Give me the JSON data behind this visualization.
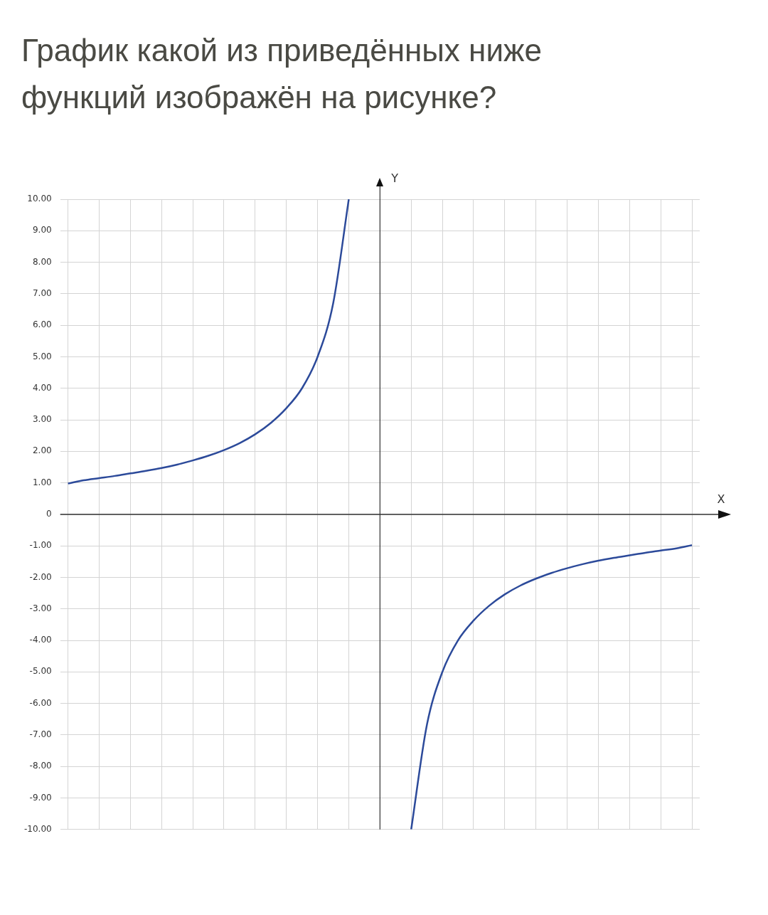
{
  "chart_data": {
    "type": "line",
    "title": "График какой из приведённых ниже функций изображён на рисунке?",
    "xlabel": "X",
    "ylabel": "Y",
    "categories": [
      null,
      null,
      null,
      null,
      null,
      null,
      null,
      null,
      null,
      null,
      null,
      null,
      null,
      null,
      null,
      null,
      null,
      null,
      null,
      null,
      null,
      null,
      null,
      null,
      null,
      null,
      null,
      null,
      null,
      null,
      null,
      null,
      null,
      null,
      null,
      null,
      null,
      null,
      null,
      null,
      null
    ],
    "series": [
      {
        "color": "#2c4a9a",
        "values": [
          0.98,
          1.08,
          1.15,
          1.22,
          1.3,
          1.38,
          1.47,
          1.58,
          1.71,
          1.86,
          2.04,
          2.26,
          2.54,
          2.9,
          3.37,
          4.0,
          5.0,
          6.7,
          10,
          null,
          null,
          null,
          -10,
          -6.7,
          -5.0,
          -4.0,
          -3.37,
          -2.9,
          -2.54,
          -2.26,
          -2.04,
          -1.86,
          -1.71,
          -1.58,
          -1.47,
          -1.38,
          -1.3,
          -1.22,
          -1.15,
          -1.08,
          -0.98
        ]
      }
    ],
    "ylim": [
      -10,
      10
    ],
    "yticks": [
      {
        "value": 10,
        "label": "10.00"
      },
      {
        "value": 9,
        "label": "9.00"
      },
      {
        "value": 8,
        "label": "8.00"
      },
      {
        "value": 7,
        "label": "7.00"
      },
      {
        "value": 6,
        "label": "6.00"
      },
      {
        "value": 5,
        "label": "5.00"
      },
      {
        "value": 4,
        "label": "4.00"
      },
      {
        "value": 3,
        "label": "3.00"
      },
      {
        "value": 2,
        "label": "2.00"
      },
      {
        "value": 1,
        "label": "1.00"
      },
      0,
      {
        "value": -1,
        "label": "-1.00"
      },
      {
        "value": -2,
        "label": "-2.00"
      },
      {
        "value": -3,
        "label": "-3.00"
      },
      {
        "value": -4,
        "label": "-4.00"
      },
      {
        "value": -5,
        "label": "-5.00"
      },
      {
        "value": -6,
        "label": "-6.00"
      },
      {
        "value": -7,
        "label": "-7.00"
      },
      {
        "value": -8,
        "label": "-8.00"
      },
      {
        "value": -9,
        "label": "-9.00"
      },
      {
        "value": -10,
        "label": "-10.00"
      }
    ],
    "grid": true,
    "tick_labels": "y",
    "legend": false,
    "marker": "none",
    "line_style": "solid"
  }
}
